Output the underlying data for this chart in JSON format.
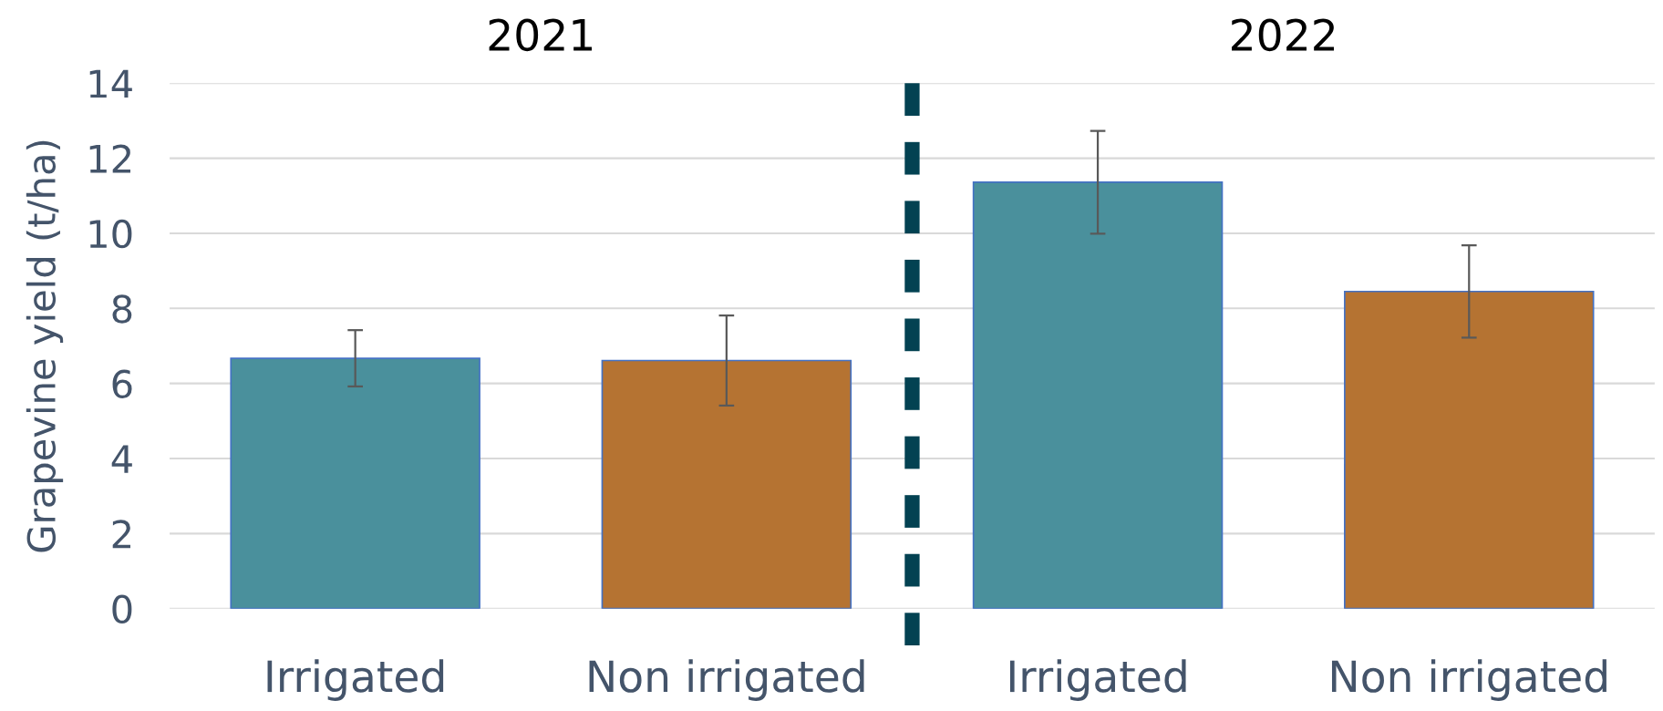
{
  "chart_data": {
    "type": "bar",
    "categories": [
      "Irrigated",
      "Non irrigated",
      "Irrigated",
      "Non irrigated"
    ],
    "values": [
      6.67,
      6.61,
      11.36,
      8.45
    ],
    "errors": [
      0.75,
      1.2,
      1.37,
      1.23
    ],
    "colors": [
      "#4a909c",
      "#b57332",
      "#4a909c",
      "#b57332"
    ],
    "ylabel": "Grapevine yield (t/ha)",
    "annotations": [
      "2021",
      "2022"
    ],
    "ylim": [
      0,
      14
    ],
    "yticks": [
      0,
      2,
      4,
      6,
      8,
      10,
      12,
      14
    ],
    "grid": "y",
    "legend": false
  }
}
